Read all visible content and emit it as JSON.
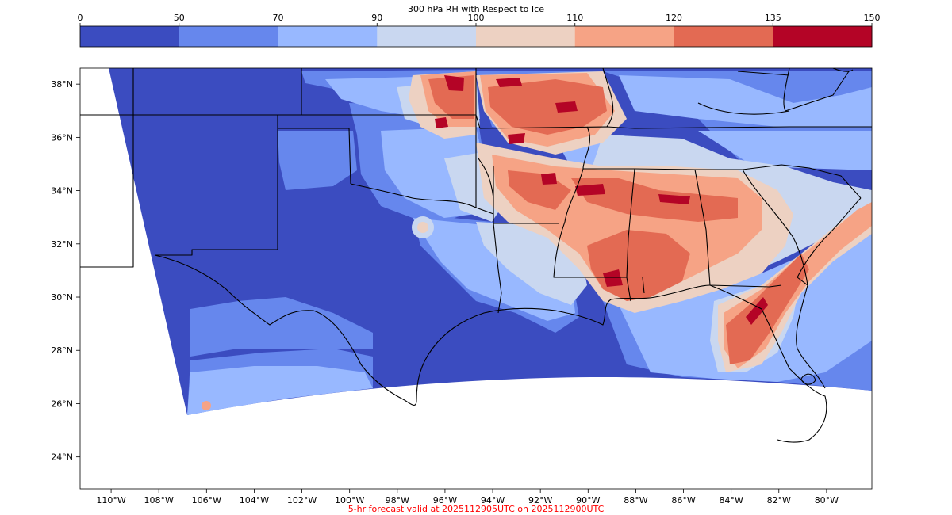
{
  "colorbar": {
    "title": "300 hPa RH with Respect to Ice",
    "ticks": [
      "0",
      "50",
      "70",
      "90",
      "100",
      "110",
      "120",
      "135",
      "150"
    ],
    "levels": [
      0,
      50,
      70,
      90,
      100,
      110,
      120,
      135,
      150
    ],
    "colors": [
      "#3b4cc0",
      "#6687ed",
      "#98b8ff",
      "#c9d7f0",
      "#edd1c2",
      "#f6a385",
      "#e36a53",
      "#b40426"
    ]
  },
  "map": {
    "lat_labels": [
      "38°N",
      "36°N",
      "34°N",
      "32°N",
      "30°N",
      "28°N",
      "26°N",
      "24°N"
    ],
    "lon_labels": [
      "110°W",
      "108°W",
      "106°W",
      "104°W",
      "102°W",
      "100°W",
      "98°W",
      "96°W",
      "94°W",
      "92°W",
      "90°W",
      "88°W",
      "86°W",
      "84°W",
      "82°W",
      "80°W"
    ],
    "lat_values": [
      38,
      36,
      34,
      32,
      30,
      28,
      26,
      24
    ],
    "lon_values": [
      -110,
      -108,
      -106,
      -104,
      -102,
      -100,
      -98,
      -96,
      -94,
      -92,
      -90,
      -88,
      -86,
      -84,
      -82,
      -80
    ],
    "extent": {
      "lon_min": -111.3,
      "lon_max": -78.1,
      "lat_min": 22.8,
      "lat_max": 38.6
    },
    "boundary_color": "#000000"
  },
  "footer": {
    "text": "5-hr forecast valid at 2025112905UTC on 2025112900UTC",
    "color": "#ff0000"
  }
}
